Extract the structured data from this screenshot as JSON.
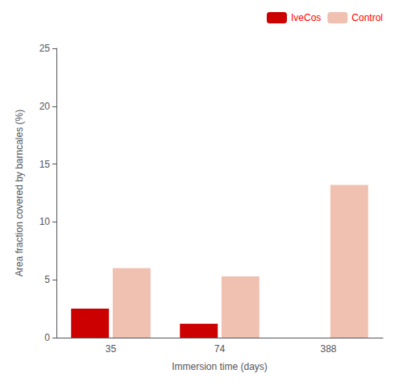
{
  "chart_data": {
    "type": "bar",
    "xlabel": "Immersion time (days)",
    "ylabel": "Area fraction covered by barncales (%)",
    "categories": [
      "35",
      "74",
      "388"
    ],
    "series": [
      {
        "name": "IveCos",
        "color": "#cc0000",
        "values": [
          2.5,
          1.2,
          0.0
        ]
      },
      {
        "name": "Control",
        "color": "#f0c0b0",
        "values": [
          6.0,
          5.3,
          13.2
        ]
      }
    ],
    "ylim": [
      0,
      25
    ],
    "yticks": [
      0,
      5,
      10,
      15,
      20,
      25
    ],
    "grid": false,
    "legend": "upper right"
  }
}
